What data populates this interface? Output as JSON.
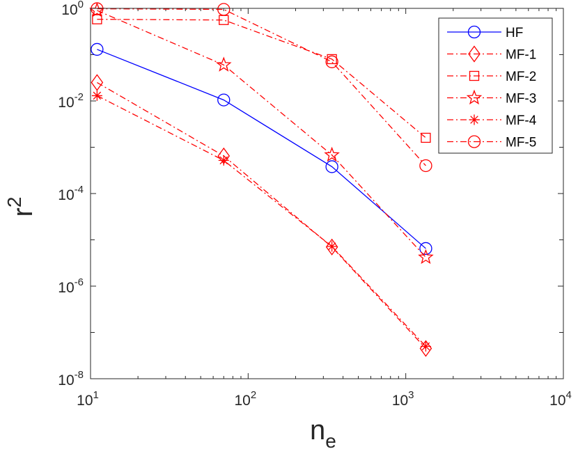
{
  "chart_data": {
    "type": "line",
    "xscale": "log",
    "yscale": "log",
    "xlim": [
      10,
      10000
    ],
    "ylim": [
      1e-08,
      1
    ],
    "xlabel": "n",
    "xlabel_sub": "e",
    "ylabel": "r",
    "ylabel_sup": "2",
    "grid": false,
    "legend_position": "top-right",
    "x_ticks": [
      {
        "value": 10,
        "base": "10",
        "exp": "1"
      },
      {
        "value": 100,
        "base": "10",
        "exp": "2"
      },
      {
        "value": 1000,
        "base": "10",
        "exp": "3"
      },
      {
        "value": 10000,
        "base": "10",
        "exp": "4"
      }
    ],
    "y_ticks": [
      {
        "value": 1,
        "base": "10",
        "exp": "0"
      },
      {
        "value": 0.01,
        "base": "10",
        "exp": "-2"
      },
      {
        "value": 0.0001,
        "base": "10",
        "exp": "-4"
      },
      {
        "value": 1e-06,
        "base": "10",
        "exp": "-6"
      },
      {
        "value": 1e-08,
        "base": "10",
        "exp": "-8"
      }
    ],
    "x": [
      11,
      70,
      340,
      1340
    ],
    "series": [
      {
        "name": "HF",
        "color": "#0000ff",
        "dash": "solid",
        "marker": "circle",
        "values": [
          0.13,
          0.0105,
          0.00038,
          6.5e-06
        ]
      },
      {
        "name": "MF-1",
        "color": "#ff0000",
        "dash": "dashdot",
        "marker": "diamond",
        "values": [
          0.025,
          0.00065,
          7e-06,
          4.5e-08
        ]
      },
      {
        "name": "MF-2",
        "color": "#ff0000",
        "dash": "dashdot",
        "marker": "square",
        "values": [
          0.58,
          0.56,
          0.08,
          0.0016
        ]
      },
      {
        "name": "MF-3",
        "color": "#ff0000",
        "dash": "dashdot",
        "marker": "pentagram",
        "values": [
          0.9,
          0.06,
          0.00068,
          4.2e-06
        ]
      },
      {
        "name": "MF-4",
        "color": "#ff0000",
        "dash": "dashdot",
        "marker": "asterisk",
        "values": [
          0.013,
          0.00052,
          7.2e-06,
          5e-08
        ]
      },
      {
        "name": "MF-5",
        "color": "#ff0000",
        "dash": "dashdot",
        "marker": "circle",
        "values": [
          0.98,
          0.95,
          0.07,
          0.0004
        ]
      }
    ]
  }
}
